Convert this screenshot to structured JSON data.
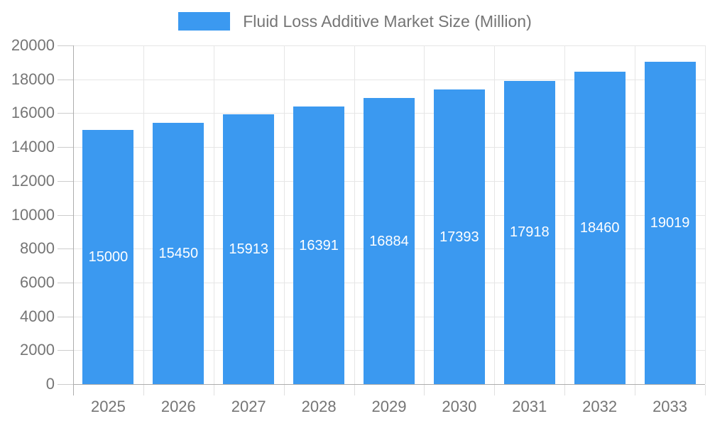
{
  "chart_data": {
    "type": "bar",
    "title": "Fluid Loss Additive Market Size (Million)",
    "legend": {
      "label": "Fluid Loss Additive Market Size (Million)",
      "position": "top"
    },
    "categories": [
      "2025",
      "2026",
      "2027",
      "2028",
      "2029",
      "2030",
      "2031",
      "2032",
      "2033"
    ],
    "series": [
      {
        "name": "Fluid Loss Additive Market Size (Million)",
        "values": [
          15000,
          15450,
          15913,
          16391,
          16884,
          17393,
          17918,
          18460,
          19019
        ]
      }
    ],
    "value_labels": [
      "15000",
      "15450",
      "15913",
      "16391",
      "16884",
      "17393",
      "17918",
      "18460",
      "19019"
    ],
    "xlabel": "",
    "ylabel": "",
    "ylim": [
      0,
      20000
    ],
    "y_ticks": [
      0,
      2000,
      4000,
      6000,
      8000,
      10000,
      12000,
      14000,
      16000,
      18000,
      20000
    ],
    "y_tick_labels": [
      "0",
      "2000",
      "4000",
      "6000",
      "8000",
      "10000",
      "12000",
      "14000",
      "16000",
      "18000",
      "20000"
    ],
    "grid": true,
    "colors": {
      "bar": "#3B99F0",
      "value_label_text": "#ffffff",
      "axis_label_text": "#757575",
      "legend_text": "#757575",
      "gridline": "#e6e6e6",
      "axis_line": "#adadad",
      "y_tick": "#cccccc",
      "x_tick": "#e0e0e0",
      "background": "#ffffff"
    }
  }
}
